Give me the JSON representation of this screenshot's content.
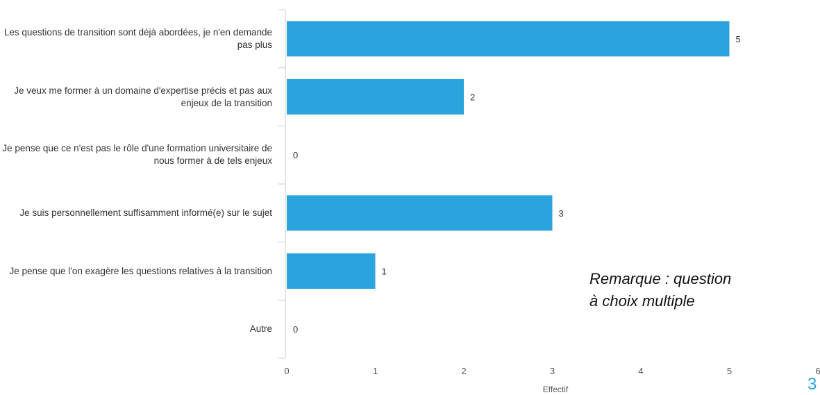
{
  "chart_data": {
    "type": "bar",
    "orientation": "horizontal",
    "categories": [
      "Les questions de transition sont déjà abordées, je n'en demande pas plus",
      "Je veux me former à un domaine d'expertise précis et pas aux enjeux de la transition",
      "Je pense que ce n'est pas le rôle d'une formation universitaire de nous former à de tels enjeux",
      "Je suis personnellement suffisamment informé(e) sur le sujet",
      "Je pense que l'on exagère les questions relatives à la transition",
      "Autre"
    ],
    "values": [
      5,
      2,
      0,
      3,
      1,
      0
    ],
    "value_labels": [
      "5",
      "2",
      "0",
      "3",
      "1",
      "0"
    ],
    "xlabel": "Effectif",
    "xlim": [
      0,
      6
    ],
    "x_ticks": [
      "0",
      "1",
      "2",
      "3",
      "4",
      "5",
      "6"
    ],
    "grid": false,
    "legend": "none",
    "bar_color": "#2ba3dc",
    "axis_color": "#cccccc"
  },
  "annotation": {
    "line1": "Remarque : question",
    "line2": "à choix multiple"
  },
  "slide_number": "3"
}
